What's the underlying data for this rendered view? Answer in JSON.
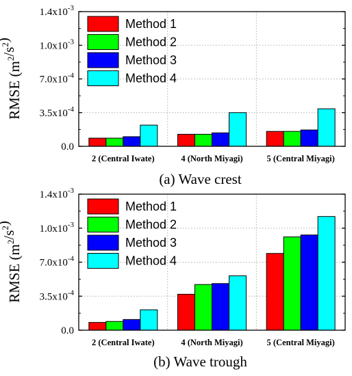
{
  "colors": {
    "method1": "#ff0000",
    "method2": "#00ff00",
    "method3": "#0000ff",
    "method4": "#00ffff",
    "axis": "#000000",
    "grid": "#b0b0b0"
  },
  "chart_data": [
    {
      "type": "bar",
      "title": "(a) Wave crest",
      "ylabel": "RMSE (m²/s²)",
      "ylim": [
        0,
        0.0014
      ],
      "yticks": [
        {
          "value": 0,
          "mantissa": "0.0",
          "exponent": ""
        },
        {
          "value": 0.00035,
          "mantissa": "3.5x10",
          "exponent": "-4"
        },
        {
          "value": 0.0007,
          "mantissa": "7.0x10",
          "exponent": "-4"
        },
        {
          "value": 0.00105,
          "mantissa": "1.0x10",
          "exponent": "-3"
        },
        {
          "value": 0.0014,
          "mantissa": "1.4x10",
          "exponent": "-3"
        }
      ],
      "categories": [
        "2 (Central Iwate)",
        "4 (North Miyagi)",
        "5 (Central Miyagi)"
      ],
      "grid": true,
      "legend_position": "top-left",
      "series": [
        {
          "name": "Method 1",
          "values": [
            8.5e-05,
            0.000125,
            0.000155
          ]
        },
        {
          "name": "Method 2",
          "values": [
            8.5e-05,
            0.000125,
            0.000155
          ]
        },
        {
          "name": "Method 3",
          "values": [
            0.0001,
            0.00014,
            0.00017
          ]
        },
        {
          "name": "Method 4",
          "values": [
            0.00022,
            0.00035,
            0.00039
          ]
        }
      ]
    },
    {
      "type": "bar",
      "title": "(b) Wave trough",
      "ylabel": "RMSE (m²/s²)",
      "ylim": [
        0,
        0.0014
      ],
      "yticks": [
        {
          "value": 0,
          "mantissa": "0.0",
          "exponent": ""
        },
        {
          "value": 0.00035,
          "mantissa": "3.5x10",
          "exponent": "-4"
        },
        {
          "value": 0.0007,
          "mantissa": "7.0x10",
          "exponent": "-4"
        },
        {
          "value": 0.00105,
          "mantissa": "1.0x10",
          "exponent": "-3"
        },
        {
          "value": 0.0014,
          "mantissa": "1.4x10",
          "exponent": "-3"
        }
      ],
      "categories": [
        "2 (Central Iwate)",
        "4 (North Miyagi)",
        "5 (Central Miyagi)"
      ],
      "grid": true,
      "legend_position": "top-left",
      "series": [
        {
          "name": "Method 1",
          "values": [
            8e-05,
            0.00037,
            0.00079
          ]
        },
        {
          "name": "Method 2",
          "values": [
            9e-05,
            0.00047,
            0.00096
          ]
        },
        {
          "name": "Method 3",
          "values": [
            0.00011,
            0.00048,
            0.00098
          ]
        },
        {
          "name": "Method 4",
          "values": [
            0.00021,
            0.00056,
            0.00117
          ]
        }
      ]
    }
  ]
}
